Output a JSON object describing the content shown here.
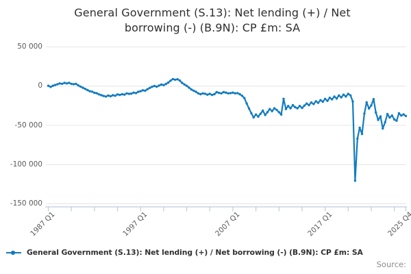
{
  "title_lines": [
    "General Government (S.13): Net lending (+) / Net",
    "borrowing (-) (B.9N): CP £m: SA"
  ],
  "source_label": "Source:",
  "colors": {
    "line": "#127bbf",
    "grid": "#e4e4e4",
    "axis": "#bfcbdd"
  },
  "chart_data": {
    "type": "line",
    "title": "General Government (S.13): Net lending (+) / Net borrowing (-) (B.9N): CP £m: SA",
    "xlabel": "",
    "ylabel": "",
    "x_start": "1987 Q1",
    "x_end": "2025 Q4",
    "frequency": "quarterly",
    "x_tick_labels": [
      "1987 Q1",
      "1997 Q1",
      "2007 Q1",
      "2017 Q1",
      "2025 Q4"
    ],
    "x_tick_quarters": [
      0,
      40,
      80,
      120,
      155
    ],
    "x_minor_tick_step": 10,
    "y_ticks": [
      {
        "value": 50000,
        "label": "50 000"
      },
      {
        "value": 0,
        "label": "0"
      },
      {
        "value": -50000,
        "label": "-50 000"
      },
      {
        "value": -100000,
        "label": "-100 000"
      },
      {
        "value": -150000,
        "label": "-150 000"
      }
    ],
    "ylim": [
      -150000,
      50000
    ],
    "grid": "horizontal",
    "legend_position": "bottom-left",
    "series": [
      {
        "name": "General Government (S.13): Net lending (+) / Net borrowing (-) (B.9N): CP £m: SA",
        "values": [
          500,
          -1000,
          500,
          1500,
          2500,
          3500,
          3000,
          4200,
          3500,
          4200,
          3000,
          2500,
          3000,
          1000,
          -500,
          -2000,
          -3500,
          -5000,
          -6500,
          -7000,
          -8500,
          -9000,
          -10500,
          -11500,
          -12500,
          -13200,
          -12000,
          -12800,
          -11500,
          -12200,
          -10500,
          -11200,
          -10200,
          -10800,
          -9200,
          -9800,
          -9500,
          -8200,
          -8800,
          -7200,
          -6500,
          -5200,
          -5800,
          -3800,
          -2200,
          -800,
          300,
          -700,
          800,
          2000,
          1400,
          2800,
          4500,
          7000,
          9100,
          8200,
          8800,
          7200,
          4200,
          2200,
          400,
          -1800,
          -4200,
          -5800,
          -7200,
          -9200,
          -10200,
          -9200,
          -9800,
          -10800,
          -9800,
          -11200,
          -10200,
          -7600,
          -8600,
          -9200,
          -7600,
          -8200,
          -9200,
          -8800,
          -8200,
          -9200,
          -8800,
          -10200,
          -12200,
          -15200,
          -22000,
          -28500,
          -34500,
          -39800,
          -36200,
          -38800,
          -35200,
          -31200,
          -36800,
          -33200,
          -29200,
          -31800,
          -28200,
          -30200,
          -33200,
          -36200,
          -16200,
          -29200,
          -25200,
          -28200,
          -24200,
          -26800,
          -28200,
          -25200,
          -27800,
          -24800,
          -22200,
          -24200,
          -20800,
          -22800,
          -19200,
          -21200,
          -17800,
          -19800,
          -16200,
          -18800,
          -14800,
          -16800,
          -13200,
          -15800,
          -11800,
          -14200,
          -10800,
          -13200,
          -9800,
          -11800,
          -19500,
          -120500,
          -67000,
          -53000,
          -61000,
          -35000,
          -20500,
          -28500,
          -24500,
          -16500,
          -33500,
          -43000,
          -38500,
          -54000,
          -46000,
          -35500,
          -40000,
          -37500,
          -42500,
          -44000,
          -34500,
          -37500,
          -36000,
          -38000
        ]
      }
    ]
  }
}
